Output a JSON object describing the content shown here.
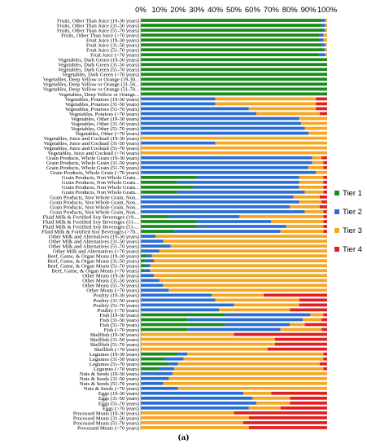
{
  "chart_data": {
    "type": "bar",
    "orientation": "horizontal",
    "stacked": true,
    "x_ticks": [
      "0%",
      "10%",
      "20%",
      "30%",
      "40%",
      "50%",
      "60%",
      "70%",
      "80%",
      "90%",
      "100%"
    ],
    "xlim": [
      0,
      100
    ],
    "legend_position": "right",
    "series": [
      {
        "name": "Tier 1",
        "color": "#1a8a1a"
      },
      {
        "name": "Tier 2",
        "color": "#2a6fd1"
      },
      {
        "name": "Tier 3",
        "color": "#f5a623"
      },
      {
        "name": "Tier 4",
        "color": "#e02020"
      }
    ],
    "categories": [
      "Fruits, Other Than Juice (19-30 years)",
      "Fruits, Other Than Juice (31-50 years)",
      "Fruits, Other Than Juice (51-70 years)",
      "Fruits, Other Than Juice (>70 years)",
      "Fruit Juice (19-30 years)",
      "Fruit Juice (31-50 years)",
      "Fruit Juice (51-70 years)",
      "Fruit Juice (>70 years)",
      "Vegetables, Dark Green (19-30 years)",
      "Vegetables, Dark Green (31-50 years)",
      "Vegetables, Dark Green (51-70 years)",
      "Vegetables, Dark Green (>70 years)",
      "Vegetables, Deep Yellow or Orange (19-30...",
      "Vegetables, Deep Yellow or Orange (31-50...",
      "Vegetables, Deep Yellow or Orange (51-70...",
      "Vegetables, Deep Yellow or Orange...",
      "Vegetables, Potatoes (19-30 years)",
      "Vegetables, Potatoes (31-50 years)",
      "Vegetables, Potatoes (51-70 years)",
      "Vegetables, Potatoes (>70 years)",
      "Vegetables, Other (19-30 years)",
      "Vegetables, Other (31-50 years)",
      "Vegetables, Other (51-70 years)",
      "Vegetables, Other (>70 years)",
      "Vegetables, Juice and Cocktail (19-30 years)",
      "Vegetables, Juice and Cocktail (31-50 years)",
      "Vegetables, Juice and Cocktail (51-70 years)",
      "Vegetables, Juice and Cocktail (>70 years)",
      "Grain Products, Whole Grain (19-30 years)",
      "Grain Products, Whole Grain (31-50 years)",
      "Grain Products, Whole Grain (51-70 years)",
      "Grain Products, Whole Grain (>70 years)",
      "Grain Products, Non Whole Grain...",
      "Grain Products, Non Whole Grain...",
      "Grain Products, Non Whole Grain...",
      "Grain Products, Non Whole Grain...",
      "Grain Products, Non Whole Grain, Non...",
      "Grain Products, Non Whole Grain, Non...",
      "Grain Products, Non Whole Grain, Non...",
      "Grain Products, Non Whole Grain, Non...",
      "Fluid Milk & Fortified Soy Beverages (19-...",
      "Fluid Milk & Fortified Soy Beverages (31-...",
      "Fluid Milk & Fortified Soy Beverages (51-...",
      "Fluid Milk & Fortified Soy Beverages (>70...",
      "Other Milk and Alternatives (19-30 years)",
      "Other Milk and Alternatives (31-50 years)",
      "Other Milk and Alternatives (51-70 years)",
      "Other Milk and Alternatives (>70 years)",
      "Beef, Game, & Organ Meats (19-30 years)",
      "Beef, Game, & Organ Meats (31-50 years)",
      "Beef, Game, & Organ Meats (51-70 years)",
      "Beef, Game, & Organ Meats (>70 years)",
      "Other Meats (19-30 years)",
      "Other Meats (31-50 years)",
      "Other Meats (51-70 years)",
      "Other Meats (>70 years)",
      "Poultry (19-30 years)",
      "Poultry (31-50 years)",
      "Poultry (51-70 years)",
      "Poultry (>70 years)",
      "Fish (19-30 years)",
      "Fish (31-50 years)",
      "Fish (51-70 years)",
      "Fish (>70 years)",
      "Shellfish (19-30 years)",
      "Shellfish (31-50 years)",
      "Shellfish (51-70 years)",
      "Shellfish (>70 years)",
      "Legumes (19-30 years)",
      "Legumes (31-50 years)",
      "Legumes (51-70 years)",
      "Legumes (>70 years)",
      "Nuts & Seeds (19-30 years)",
      "Nuts & Seeds (31-50 years)",
      "Nuts & Seeds (51-70 years)",
      "Nuts & Seeds (>70 years)",
      "Eggs (19-30 years)",
      "Eggs (31-50 years)",
      "Eggs (51-70 years)",
      "Eggs (>70 years)",
      "Processed Meats (19-30 years)",
      "Processed Meats (31-50 years)",
      "Processed Meats (51-70 years)",
      "Processed Meats (>70 years)"
    ],
    "values": [
      [
        97,
        2,
        1,
        0
      ],
      [
        97,
        2,
        1,
        0
      ],
      [
        98,
        1,
        1,
        0
      ],
      [
        96,
        2,
        2,
        0
      ],
      [
        96,
        2,
        2,
        0
      ],
      [
        97,
        2,
        1,
        0
      ],
      [
        98,
        1,
        1,
        0
      ],
      [
        96,
        3,
        1,
        0
      ],
      [
        100,
        0,
        0,
        0
      ],
      [
        100,
        0,
        0,
        0
      ],
      [
        100,
        0,
        0,
        0
      ],
      [
        100,
        0,
        0,
        0
      ],
      [
        100,
        0,
        0,
        0
      ],
      [
        100,
        0,
        0,
        0
      ],
      [
        100,
        0,
        0,
        0
      ],
      [
        100,
        0,
        0,
        0
      ],
      [
        0,
        40,
        54,
        6
      ],
      [
        0,
        40,
        54,
        6
      ],
      [
        0,
        58,
        36,
        6
      ],
      [
        0,
        62,
        34,
        4
      ],
      [
        0,
        85,
        15,
        0
      ],
      [
        0,
        86,
        14,
        0
      ],
      [
        0,
        88,
        12,
        0
      ],
      [
        0,
        90,
        10,
        0
      ],
      [
        0,
        0,
        100,
        0
      ],
      [
        0,
        40,
        60,
        0
      ],
      [
        0,
        0,
        100,
        0
      ],
      [
        0,
        0,
        100,
        0
      ],
      [
        0,
        92,
        5,
        3
      ],
      [
        0,
        92,
        6,
        2
      ],
      [
        0,
        90,
        8,
        2
      ],
      [
        0,
        94,
        6,
        0
      ],
      [
        30,
        55,
        13,
        2
      ],
      [
        20,
        65,
        13,
        2
      ],
      [
        28,
        57,
        13,
        2
      ],
      [
        20,
        68,
        10,
        2
      ],
      [
        0,
        82,
        14,
        4
      ],
      [
        0,
        85,
        12,
        3
      ],
      [
        0,
        80,
        16,
        4
      ],
      [
        0,
        88,
        10,
        2
      ],
      [
        15,
        38,
        45,
        2
      ],
      [
        30,
        40,
        28,
        2
      ],
      [
        30,
        48,
        20,
        2
      ],
      [
        18,
        57,
        23,
        2
      ],
      [
        0,
        8,
        92,
        0
      ],
      [
        0,
        12,
        88,
        0
      ],
      [
        0,
        16,
        84,
        0
      ],
      [
        0,
        10,
        90,
        0
      ],
      [
        3,
        3,
        94,
        0
      ],
      [
        2,
        5,
        93,
        0
      ],
      [
        3,
        2,
        95,
        0
      ],
      [
        2,
        3,
        95,
        0
      ],
      [
        0,
        7,
        93,
        0
      ],
      [
        0,
        10,
        90,
        0
      ],
      [
        0,
        12,
        88,
        0
      ],
      [
        0,
        15,
        85,
        0
      ],
      [
        0,
        38,
        28,
        34
      ],
      [
        0,
        40,
        45,
        15
      ],
      [
        0,
        50,
        35,
        15
      ],
      [
        0,
        42,
        38,
        20
      ],
      [
        45,
        46,
        7,
        2
      ],
      [
        25,
        62,
        10,
        3
      ],
      [
        45,
        35,
        8,
        12
      ],
      [
        25,
        50,
        22,
        3
      ],
      [
        0,
        0,
        50,
        50
      ],
      [
        0,
        0,
        72,
        28
      ],
      [
        0,
        0,
        72,
        28
      ],
      [
        0,
        0,
        68,
        32
      ],
      [
        20,
        5,
        73,
        2
      ],
      [
        13,
        10,
        75,
        2
      ],
      [
        15,
        5,
        76,
        4
      ],
      [
        10,
        8,
        80,
        2
      ],
      [
        0,
        17,
        83,
        0
      ],
      [
        0,
        15,
        85,
        0
      ],
      [
        0,
        12,
        88,
        0
      ],
      [
        0,
        20,
        80,
        0
      ],
      [
        0,
        55,
        15,
        30
      ],
      [
        0,
        60,
        20,
        20
      ],
      [
        0,
        62,
        18,
        20
      ],
      [
        0,
        58,
        17,
        25
      ],
      [
        0,
        0,
        50,
        50
      ],
      [
        0,
        0,
        58,
        42
      ],
      [
        0,
        0,
        55,
        45
      ],
      [
        0,
        0,
        58,
        42
      ]
    ]
  },
  "figure": {
    "caption": "(a)"
  }
}
